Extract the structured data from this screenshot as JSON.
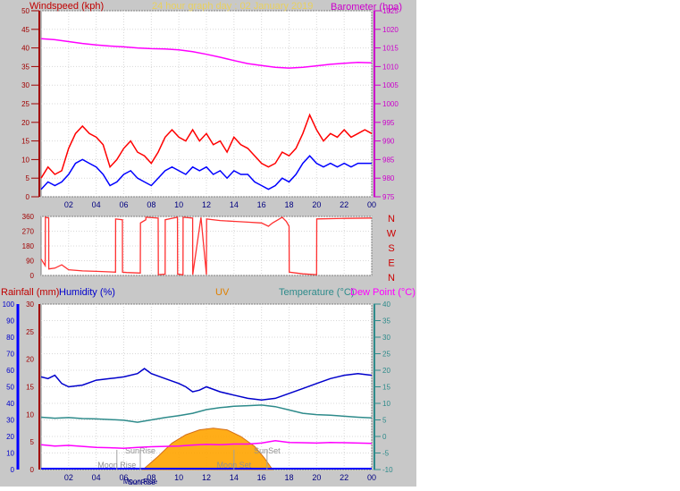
{
  "chart_data": [
    {
      "type": "line",
      "title": "24 hour graph day : 02 January 2019",
      "left_axis_title": "Windspeed (kph)",
      "right_axis_title": "Barometer (hpa)",
      "left_ticks": [
        0,
        5,
        10,
        15,
        20,
        25,
        30,
        35,
        40,
        45,
        50
      ],
      "left_range": [
        0,
        50
      ],
      "right_ticks": [
        975,
        980,
        985,
        990,
        995,
        1000,
        1005,
        1010,
        1015,
        1020,
        1025
      ],
      "right_range": [
        975,
        1025
      ],
      "x_ticks": [
        "02",
        "04",
        "06",
        "08",
        "10",
        "12",
        "14",
        "16",
        "18",
        "20",
        "22",
        "00"
      ],
      "x_range": [
        0,
        24
      ],
      "grid": true,
      "colors": {
        "gust": "#ff0000",
        "avg": "#0000ff",
        "barometer": "#ff00ff",
        "title": "#e8d060"
      },
      "series": [
        {
          "key": "barometer",
          "axis": "right",
          "x": [
            0,
            1,
            2,
            3,
            4,
            5,
            6,
            7,
            8,
            9,
            10,
            11,
            12,
            13,
            14,
            15,
            16,
            17,
            18,
            19,
            20,
            21,
            22,
            23,
            24
          ],
          "values": [
            1017.5,
            1017.2,
            1016.7,
            1016.2,
            1015.8,
            1015.5,
            1015.3,
            1015.0,
            1014.8,
            1014.7,
            1014.5,
            1014.0,
            1013.3,
            1012.5,
            1011.6,
            1010.8,
            1010.3,
            1009.8,
            1009.6,
            1009.8,
            1010.2,
            1010.6,
            1010.9,
            1011.1,
            1011.0
          ]
        },
        {
          "key": "gust",
          "axis": "left",
          "x": [
            0,
            0.5,
            1,
            1.5,
            2,
            2.5,
            3,
            3.5,
            4,
            4.5,
            5,
            5.5,
            6,
            6.5,
            7,
            7.5,
            8,
            8.5,
            9,
            9.5,
            10,
            10.5,
            11,
            11.5,
            12,
            12.5,
            13,
            13.5,
            14,
            14.5,
            15,
            15.5,
            16,
            16.5,
            17,
            17.5,
            18,
            18.5,
            19,
            19.5,
            20,
            20.5,
            21,
            21.5,
            22,
            22.5,
            23,
            23.5,
            24
          ],
          "values": [
            5,
            8,
            6,
            7,
            13,
            17,
            19,
            17,
            16,
            14,
            8,
            10,
            13,
            15,
            12,
            11,
            9,
            12,
            16,
            18,
            16,
            15,
            18,
            15,
            17,
            14,
            15,
            12,
            16,
            14,
            13,
            11,
            9,
            8,
            9,
            12,
            11,
            13,
            17,
            22,
            18,
            15,
            17,
            16,
            18,
            16,
            17,
            18,
            17
          ]
        },
        {
          "key": "avg",
          "axis": "left",
          "x": [
            0,
            0.5,
            1,
            1.5,
            2,
            2.5,
            3,
            3.5,
            4,
            4.5,
            5,
            5.5,
            6,
            6.5,
            7,
            7.5,
            8,
            8.5,
            9,
            9.5,
            10,
            10.5,
            11,
            11.5,
            12,
            12.5,
            13,
            13.5,
            14,
            14.5,
            15,
            15.5,
            16,
            16.5,
            17,
            17.5,
            18,
            18.5,
            19,
            19.5,
            20,
            20.5,
            21,
            21.5,
            22,
            22.5,
            23,
            23.5,
            24
          ],
          "values": [
            2,
            4,
            3,
            4,
            6,
            9,
            10,
            9,
            8,
            6,
            3,
            4,
            6,
            7,
            5,
            4,
            3,
            5,
            7,
            8,
            7,
            6,
            8,
            7,
            8,
            6,
            7,
            5,
            7,
            6,
            6,
            4,
            3,
            2,
            3,
            5,
            4,
            6,
            9,
            11,
            9,
            8,
            9,
            8,
            9,
            8,
            9,
            9,
            9
          ]
        }
      ]
    },
    {
      "type": "line",
      "title": "",
      "right_labels": [
        "N",
        "W",
        "S",
        "E",
        "N"
      ],
      "left_ticks": [
        0,
        90,
        180,
        270,
        360
      ],
      "left_range": [
        0,
        360
      ],
      "x_range": [
        0,
        24
      ],
      "grid": true,
      "colors": {
        "direction": "#ff3030"
      },
      "series": [
        {
          "key": "direction",
          "x": [
            0,
            0.3,
            0.31,
            0.55,
            0.56,
            1,
            1.5,
            2,
            3,
            4,
            5,
            5.4,
            5.41,
            5.9,
            5.91,
            6.2,
            7.2,
            7.21,
            7.6,
            7.61,
            8.5,
            8.51,
            9.0,
            9.01,
            9.9,
            9.91,
            10.3,
            10.31,
            11.0,
            11.01,
            11.6,
            11.61,
            12.0,
            12.01,
            13,
            14,
            15,
            16,
            16.5,
            16.8,
            17.2,
            17.5,
            17.8,
            18.0,
            18.01,
            19.0,
            20.0,
            20.01,
            22,
            24
          ],
          "values": [
            100,
            60,
            355,
            350,
            40,
            45,
            65,
            35,
            28,
            25,
            22,
            20,
            345,
            340,
            20,
            18,
            15,
            320,
            340,
            355,
            350,
            5,
            8,
            340,
            355,
            8,
            5,
            355,
            350,
            5,
            350,
            350,
            5,
            345,
            335,
            330,
            325,
            320,
            300,
            320,
            340,
            355,
            330,
            300,
            20,
            10,
            5,
            345,
            348,
            350
          ]
        }
      ]
    },
    {
      "type": "line",
      "labels": {
        "rain": "Rainfall (mm)",
        "humidity": "Humidity (%)",
        "uv": "UV",
        "temperature": "Temperature (°C)",
        "dew": "Dew Point (°C)"
      },
      "humidity_ticks": [
        0,
        10,
        20,
        30,
        40,
        50,
        60,
        70,
        80,
        90,
        100
      ],
      "rain_ticks": [
        0,
        5,
        10,
        15,
        20,
        25,
        30
      ],
      "temp_ticks": [
        -10,
        -5,
        0,
        5,
        10,
        15,
        20,
        25,
        30,
        35,
        40
      ],
      "temp_range": [
        -10,
        40
      ],
      "humidity_range": [
        0,
        100
      ],
      "x_ticks": [
        "02",
        "04",
        "06",
        "08",
        "10",
        "12",
        "14",
        "16",
        "18",
        "20",
        "22",
        "00"
      ],
      "x_range": [
        0,
        24
      ],
      "grid": true,
      "events": [
        {
          "label": "Moon Rise",
          "x": 5.5
        },
        {
          "label": "SunRise",
          "x": 7.2
        },
        {
          "label": "Moon Set",
          "x": 14.0
        },
        {
          "label": "SunSet",
          "x": 16.4
        }
      ],
      "bottom_labels": [
        {
          "label": "Moon Rise",
          "x": 7.2
        },
        {
          "label": "SunRise",
          "x": 7.3
        }
      ],
      "colors": {
        "humidity": "#0000cc",
        "temperature": "#2e8b8b",
        "dew": "#ff00ff",
        "uv_fill": "#ffa500",
        "uv_edge": "#d06000",
        "rain": "#0000ff",
        "uv_label": "#e08000",
        "events": "#a0a0a0"
      },
      "series": [
        {
          "key": "humidity",
          "axis": "humidity",
          "x": [
            0,
            0.5,
            1,
            1.5,
            2,
            3,
            4,
            5,
            6,
            7,
            7.5,
            8,
            9,
            10,
            10.5,
            11,
            11.5,
            12,
            13,
            14,
            15,
            16,
            17,
            18,
            19,
            20,
            21,
            22,
            23,
            24
          ],
          "values": [
            56,
            55,
            57,
            52,
            50,
            51,
            54,
            55,
            56,
            58,
            61,
            58,
            55,
            52,
            50,
            47,
            48,
            50,
            47,
            45,
            43,
            42,
            43,
            46,
            49,
            52,
            55,
            57,
            58,
            57
          ]
        },
        {
          "key": "temperature",
          "axis": "temp",
          "x": [
            0,
            1,
            2,
            3,
            4,
            5,
            6,
            7,
            8,
            9,
            10,
            11,
            12,
            13,
            14,
            15,
            16,
            17,
            18,
            19,
            20,
            21,
            22,
            23,
            24
          ],
          "values": [
            5.8,
            5.5,
            5.7,
            5.4,
            5.3,
            5.1,
            4.9,
            4.3,
            5.0,
            5.7,
            6.3,
            7.0,
            8.1,
            8.7,
            9.1,
            9.3,
            9.5,
            9.0,
            8.0,
            7.0,
            6.6,
            6.4,
            6.1,
            5.8,
            5.6
          ]
        },
        {
          "key": "dew",
          "axis": "temp",
          "x": [
            0,
            1,
            2,
            3,
            4,
            5,
            6,
            7,
            8,
            9,
            10,
            11,
            12,
            13,
            14,
            15,
            16,
            17,
            18,
            19,
            20,
            21,
            22,
            23,
            24
          ],
          "values": [
            -2.5,
            -2.9,
            -2.7,
            -3.0,
            -3.3,
            -3.4,
            -3.6,
            -3.3,
            -3.1,
            -3.0,
            -2.9,
            -2.6,
            -2.4,
            -2.5,
            -2.3,
            -2.3,
            -2.0,
            -1.3,
            -1.8,
            -1.9,
            -2.0,
            -1.8,
            -1.9,
            -2.0,
            -2.1
          ]
        },
        {
          "key": "uv",
          "axis": "humidity",
          "x": [
            7.4,
            8.5,
            9.5,
            10.5,
            11.5,
            12.5,
            13.5,
            14.5,
            15.5,
            16.2,
            16.8
          ],
          "values": [
            0,
            8,
            16,
            21,
            24,
            25,
            24,
            20,
            14,
            7,
            0
          ]
        }
      ]
    }
  ]
}
